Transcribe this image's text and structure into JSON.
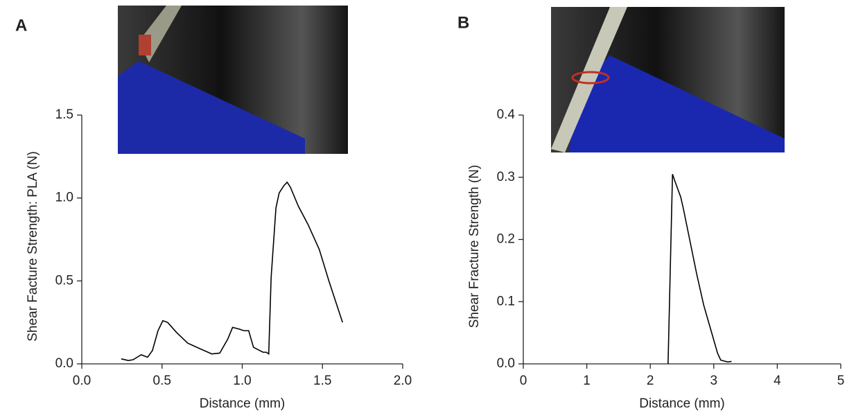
{
  "chart_data": [
    {
      "type": "line",
      "panel_label": "A",
      "xlabel": "Distance (mm)",
      "ylabel": "Shear Facture Strength: PLA (N)",
      "xlim": [
        0,
        2
      ],
      "ylim": [
        0,
        1.5
      ],
      "xticks": [
        {
          "value": 0,
          "label": "0.0"
        },
        0.5,
        {
          "value": 1,
          "label": "1.0"
        },
        1.5,
        {
          "value": 2,
          "label": "2.0"
        }
      ],
      "yticks": [
        {
          "value": 0,
          "label": "0.0"
        },
        0.5,
        {
          "value": 1,
          "label": "1.0"
        },
        1.5
      ],
      "color": "#000000",
      "x": [
        0.246,
        0.29,
        0.32,
        0.37,
        0.41,
        0.44,
        0.475,
        0.505,
        0.535,
        0.59,
        0.66,
        0.74,
        0.81,
        0.86,
        0.91,
        0.94,
        0.98,
        1.01,
        1.04,
        1.07,
        1.1,
        1.13,
        1.15,
        1.165,
        1.18,
        1.21,
        1.23,
        1.26,
        1.28,
        1.3,
        1.35,
        1.41,
        1.48,
        1.54,
        1.625
      ],
      "values": [
        0.03,
        0.02,
        0.025,
        0.055,
        0.04,
        0.08,
        0.2,
        0.26,
        0.25,
        0.19,
        0.125,
        0.09,
        0.06,
        0.065,
        0.15,
        0.22,
        0.21,
        0.2,
        0.2,
        0.1,
        0.085,
        0.07,
        0.07,
        0.06,
        0.52,
        0.94,
        1.03,
        1.075,
        1.095,
        1.065,
        0.95,
        0.84,
        0.69,
        0.5,
        0.25
      ]
    },
    {
      "type": "line",
      "panel_label": "B",
      "xlabel": "Distance (mm)",
      "ylabel": "Shear Fracture Strength (N)",
      "xlim": [
        0,
        5
      ],
      "ylim": [
        0,
        0.4
      ],
      "xticks": [
        0,
        1,
        2,
        3,
        4,
        5
      ],
      "yticks": [
        {
          "value": 0,
          "label": "0.0"
        },
        0.1,
        0.2,
        0.3,
        0.4
      ],
      "color": "#000000",
      "x": [
        2.28,
        2.35,
        2.39,
        2.48,
        2.52,
        2.62,
        2.73,
        2.84,
        2.95,
        3.06,
        3.11,
        3.22,
        3.28
      ],
      "values": [
        0,
        0.305,
        0.293,
        0.268,
        0.25,
        0.2,
        0.145,
        0.095,
        0.056,
        0.017,
        0.006,
        0.003,
        0.004
      ]
    }
  ]
}
